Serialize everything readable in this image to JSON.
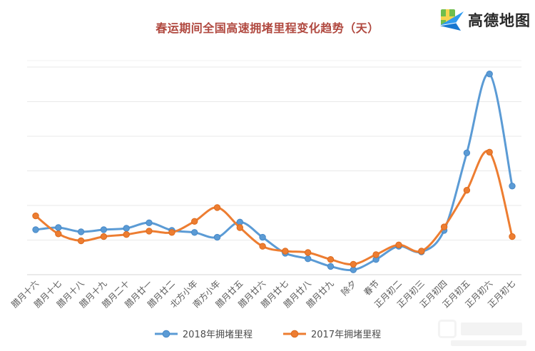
{
  "header": {
    "title": "春运期间全国高速拥堵里程变化趋势（天）",
    "title_color": "#b0483f",
    "logo": {
      "text": "高德地图",
      "text_color": "#282828",
      "icon": "amap-paper-plane-icon",
      "colors": {
        "map_green": "#6fbe4d",
        "road_yellow": "#f6d44f",
        "plane_light": "#2e9bf0",
        "plane_dark": "#1777d0"
      }
    }
  },
  "chart_data": {
    "type": "line",
    "title": "春运期间全国高速拥堵里程变化趋势（天）",
    "unit": "天",
    "categories": [
      "腊月十六",
      "腊月十七",
      "腊月十八",
      "腊月十九",
      "腊月二十",
      "腊月廿一",
      "腊月廿二",
      "北方小年",
      "南方小年",
      "腊月廿五",
      "腊月廿六",
      "腊月廿七",
      "腊月廿八",
      "腊月廿九",
      "除夕",
      "春节",
      "正月初二",
      "正月初三",
      "正月初四",
      "正月初五",
      "正月初六",
      "正月初七"
    ],
    "series": [
      {
        "name": "2018年拥堵里程",
        "color": "#5B9BD5",
        "marker_color": "#4688C7",
        "values": [
          65,
          68,
          62,
          65,
          67,
          75,
          64,
          61,
          54,
          76,
          54,
          31,
          23,
          12,
          7,
          22,
          41,
          33,
          64,
          176,
          290,
          128
        ]
      },
      {
        "name": "2017年拥堵里程",
        "color": "#ED7D31",
        "marker_color": "#DC6A1D",
        "values": [
          85,
          59,
          49,
          55,
          58,
          63,
          61,
          77,
          97,
          68,
          41,
          34,
          32,
          22,
          15,
          29,
          43,
          34,
          69,
          122,
          177,
          55
        ]
      }
    ],
    "ylim": [
      0,
      310
    ],
    "gridline_step": 50,
    "grid": true,
    "y_axis_labels_visible": false,
    "x_label_rotation_deg": -45,
    "x_label_color": "#595959",
    "gridline_color": "#e9e9e9",
    "axis_line_color": "#d6d6d6",
    "legend_position": "bottom",
    "values_are_estimated_relative_units": true
  },
  "icons": {
    "logo": "amap-paper-plane",
    "watermark": "faint-illegible-logo"
  }
}
